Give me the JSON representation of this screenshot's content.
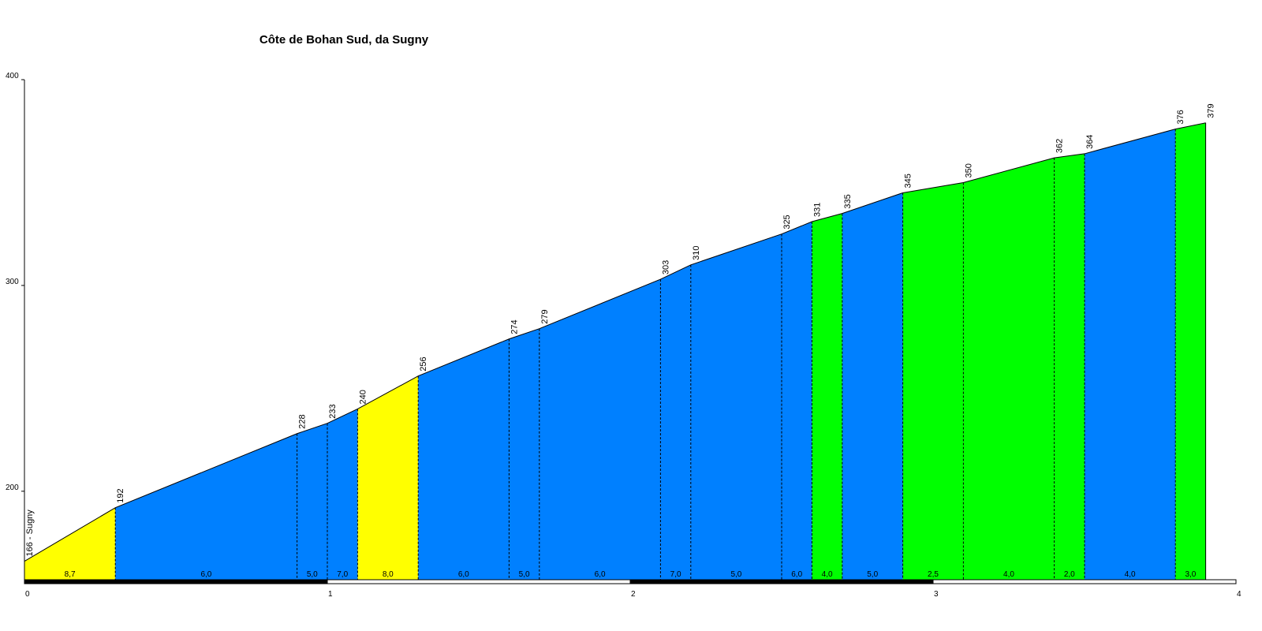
{
  "chart_data": {
    "type": "area",
    "title": "Côte de Bohan Sud, da Sugny",
    "xlabel": "",
    "ylabel": "",
    "xlim": [
      0,
      4
    ],
    "ylim": [
      157,
      400
    ],
    "x_ticks": [
      0,
      1,
      2,
      3,
      4
    ],
    "y_ticks": [
      200,
      300,
      400
    ],
    "start_label": "166 - Sugny",
    "colors": {
      "yellow": "#ffff00",
      "blue": "#0080ff",
      "green": "#00ff00"
    },
    "points": [
      {
        "x": 0.0,
        "y": 166
      },
      {
        "x": 0.3,
        "y": 192,
        "label": "192"
      },
      {
        "x": 0.9,
        "y": 228,
        "label": "228"
      },
      {
        "x": 1.0,
        "y": 233,
        "label": "233"
      },
      {
        "x": 1.1,
        "y": 240,
        "label": "240"
      },
      {
        "x": 1.3,
        "y": 256,
        "label": "256"
      },
      {
        "x": 1.6,
        "y": 274,
        "label": "274"
      },
      {
        "x": 1.7,
        "y": 279,
        "label": "279"
      },
      {
        "x": 2.1,
        "y": 303,
        "label": "303"
      },
      {
        "x": 2.2,
        "y": 310,
        "label": "310"
      },
      {
        "x": 2.5,
        "y": 325,
        "label": "325"
      },
      {
        "x": 2.6,
        "y": 331,
        "label": "331"
      },
      {
        "x": 2.7,
        "y": 335,
        "label": "335"
      },
      {
        "x": 2.9,
        "y": 345,
        "label": "345"
      },
      {
        "x": 3.1,
        "y": 350,
        "label": "350"
      },
      {
        "x": 3.4,
        "y": 362,
        "label": "362"
      },
      {
        "x": 3.5,
        "y": 364,
        "label": "364"
      },
      {
        "x": 3.8,
        "y": 376,
        "label": "376"
      },
      {
        "x": 3.9,
        "y": 379,
        "label": "379"
      }
    ],
    "segments": [
      {
        "grade": "8,7",
        "color": "yellow"
      },
      {
        "grade": "6,0",
        "color": "blue"
      },
      {
        "grade": "5,0",
        "color": "blue"
      },
      {
        "grade": "7,0",
        "color": "blue"
      },
      {
        "grade": "8,0",
        "color": "yellow"
      },
      {
        "grade": "6,0",
        "color": "blue"
      },
      {
        "grade": "5,0",
        "color": "blue"
      },
      {
        "grade": "6,0",
        "color": "blue"
      },
      {
        "grade": "7,0",
        "color": "blue"
      },
      {
        "grade": "5,0",
        "color": "blue"
      },
      {
        "grade": "6,0",
        "color": "blue"
      },
      {
        "grade": "4,0",
        "color": "green"
      },
      {
        "grade": "5,0",
        "color": "blue"
      },
      {
        "grade": "2,5",
        "color": "green"
      },
      {
        "grade": "4,0",
        "color": "green"
      },
      {
        "grade": "2,0",
        "color": "green"
      },
      {
        "grade": "4,0",
        "color": "blue"
      },
      {
        "grade": "3,0",
        "color": "green"
      }
    ]
  }
}
